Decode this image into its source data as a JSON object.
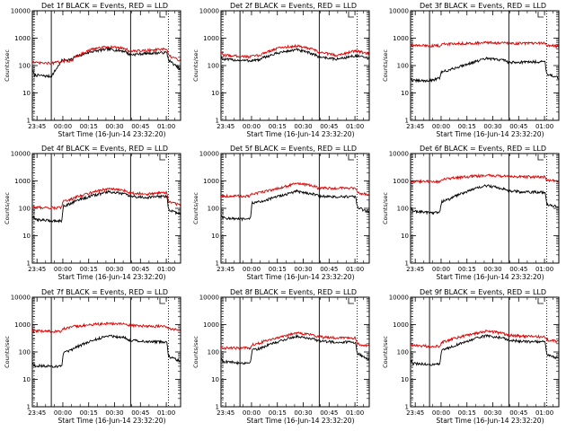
{
  "chart_data": [
    {
      "type": "line",
      "title": "Det 1f BLACK = Events, RED = LLD",
      "xlabel": "Start Time (16-Jun-14 23:32:20)",
      "ylabel": "Counts/sec",
      "ylim": [
        1,
        10000
      ],
      "yscale": "log",
      "ytick_labels": [
        "1",
        "10",
        "100",
        "1000",
        "10000"
      ],
      "xtick_labels": [
        "23:45",
        "00:00",
        "00:15",
        "00:30",
        "00:45",
        "01:00"
      ],
      "series": [
        {
          "color": "#000000",
          "x": [
            0,
            0.9,
            1,
            11,
            17,
            18,
            23.5,
            24,
            34,
            44,
            54,
            56,
            57,
            67,
            78,
            79,
            86
          ],
          "values": [
            60,
            55,
            45,
            40,
            150,
            160,
            170,
            200,
            320,
            400,
            330,
            260,
            250,
            280,
            300,
            160,
            70
          ]
        },
        {
          "color": "#e00000",
          "x": [
            0,
            0.9,
            1,
            11,
            17,
            18,
            23.5,
            24,
            34,
            44,
            54,
            56,
            57,
            67,
            78,
            79,
            86
          ],
          "values": [
            150,
            140,
            125,
            120,
            140,
            145,
            150,
            200,
            380,
            500,
            420,
            340,
            330,
            360,
            400,
            230,
            150
          ]
        }
      ],
      "markers": [
        {
          "style": "solid",
          "x": [
            11,
            57
          ]
        },
        {
          "style": "dotted",
          "x": [
            1,
            79
          ]
        }
      ]
    },
    {
      "type": "line",
      "title": "Det 2f BLACK = Events, RED = LLD",
      "xlabel": "Start Time (16-Jun-14 23:32:20)",
      "ylabel": "Counts/sec",
      "ylim": [
        1,
        10000
      ],
      "yscale": "log",
      "ytick_labels": [
        "1",
        "10",
        "100",
        "1000",
        "10000"
      ],
      "xtick_labels": [
        "23:45",
        "00:00",
        "00:15",
        "00:30",
        "00:45",
        "01:00"
      ],
      "series": [
        {
          "color": "#000000",
          "x": [
            0,
            0.9,
            1,
            11,
            17,
            18,
            23.5,
            24,
            34,
            44,
            54,
            56,
            57,
            67,
            78,
            79,
            86
          ],
          "values": [
            200,
            185,
            170,
            155,
            150,
            155,
            165,
            190,
            300,
            380,
            260,
            215,
            210,
            170,
            230,
            225,
            180
          ]
        },
        {
          "color": "#e00000",
          "x": [
            0,
            0.9,
            1,
            11,
            17,
            18,
            23.5,
            24,
            34,
            44,
            54,
            56,
            57,
            67,
            78,
            79,
            86
          ],
          "values": [
            280,
            260,
            240,
            220,
            210,
            220,
            240,
            280,
            450,
            520,
            380,
            320,
            310,
            240,
            340,
            330,
            270
          ]
        }
      ],
      "markers": [
        {
          "style": "solid",
          "x": [
            11,
            57
          ]
        },
        {
          "style": "dotted",
          "x": [
            1,
            79
          ]
        }
      ]
    },
    {
      "type": "line",
      "title": "Det 3f BLACK = Events, RED = LLD",
      "xlabel": "Start Time (16-Jun-14 23:32:20)",
      "ylabel": "Counts/sec",
      "ylim": [
        1,
        10000
      ],
      "yscale": "log",
      "ytick_labels": [
        "1",
        "10",
        "100",
        "1000",
        "10000"
      ],
      "xtick_labels": [
        "23:45",
        "00:00",
        "00:15",
        "00:30",
        "00:45",
        "01:00"
      ],
      "series": [
        {
          "color": "#000000",
          "x": [
            0,
            0.9,
            1,
            11,
            17,
            18,
            23.5,
            24,
            34,
            44,
            54,
            56,
            57,
            67,
            78,
            79,
            86
          ],
          "values": [
            35,
            30,
            28,
            28,
            35,
            60,
            70,
            75,
            120,
            180,
            160,
            140,
            130,
            135,
            140,
            50,
            35
          ]
        },
        {
          "color": "#e00000",
          "x": [
            0,
            0.9,
            1,
            11,
            17,
            18,
            23.5,
            24,
            34,
            44,
            54,
            56,
            57,
            67,
            78,
            79,
            86
          ],
          "values": [
            560,
            550,
            540,
            530,
            530,
            600,
            620,
            630,
            650,
            680,
            670,
            650,
            640,
            650,
            660,
            550,
            500
          ]
        }
      ],
      "markers": [
        {
          "style": "solid",
          "x": [
            11,
            57
          ]
        },
        {
          "style": "dotted",
          "x": [
            1,
            79
          ]
        }
      ]
    },
    {
      "type": "line",
      "title": "Det 4f BLACK = Events, RED = LLD",
      "xlabel": "Start Time (16-Jun-14 23:32:20)",
      "ylabel": "Counts/sec",
      "ylim": [
        1,
        10000
      ],
      "yscale": "log",
      "ytick_labels": [
        "1",
        "10",
        "100",
        "1000",
        "10000"
      ],
      "xtick_labels": [
        "23:45",
        "00:00",
        "00:15",
        "00:30",
        "00:45",
        "01:00"
      ],
      "series": [
        {
          "color": "#000000",
          "x": [
            0,
            0.9,
            1,
            11,
            17,
            18,
            23.5,
            24,
            34,
            44,
            54,
            56,
            57,
            67,
            78,
            79,
            86
          ],
          "values": [
            50,
            45,
            40,
            35,
            35,
            120,
            160,
            180,
            280,
            400,
            330,
            280,
            270,
            250,
            280,
            90,
            60
          ]
        },
        {
          "color": "#e00000",
          "x": [
            0,
            0.9,
            1,
            11,
            17,
            18,
            23.5,
            24,
            34,
            44,
            54,
            56,
            57,
            67,
            78,
            79,
            86
          ],
          "values": [
            120,
            115,
            110,
            105,
            105,
            190,
            220,
            240,
            380,
            520,
            440,
            380,
            370,
            330,
            380,
            180,
            130
          ]
        }
      ],
      "markers": [
        {
          "style": "solid",
          "x": [
            11,
            57
          ]
        },
        {
          "style": "dotted",
          "x": [
            1,
            79
          ]
        }
      ]
    },
    {
      "type": "line",
      "title": "Det 5f BLACK = Events, RED = LLD",
      "xlabel": "Start Time (16-Jun-14 23:32:20)",
      "ylabel": "Counts/sec",
      "ylim": [
        1,
        10000
      ],
      "yscale": "log",
      "ytick_labels": [
        "1",
        "10",
        "100",
        "1000",
        "10000"
      ],
      "xtick_labels": [
        "23:45",
        "00:00",
        "00:15",
        "00:30",
        "00:45",
        "01:00"
      ],
      "series": [
        {
          "color": "#000000",
          "x": [
            0,
            0.9,
            1,
            11,
            17,
            18,
            23.5,
            24,
            34,
            44,
            54,
            56,
            57,
            67,
            78,
            79,
            86
          ],
          "values": [
            60,
            50,
            45,
            40,
            40,
            160,
            175,
            185,
            280,
            420,
            330,
            290,
            280,
            260,
            270,
            110,
            70
          ]
        },
        {
          "color": "#e00000",
          "x": [
            0,
            0.9,
            1,
            11,
            17,
            18,
            23.5,
            24,
            34,
            44,
            54,
            56,
            57,
            67,
            78,
            79,
            86
          ],
          "values": [
            290,
            285,
            280,
            280,
            280,
            330,
            380,
            400,
            550,
            820,
            650,
            560,
            550,
            540,
            560,
            380,
            310
          ]
        }
      ],
      "markers": [
        {
          "style": "solid",
          "x": [
            11,
            57
          ]
        },
        {
          "style": "dotted",
          "x": [
            1,
            79
          ]
        }
      ]
    },
    {
      "type": "line",
      "title": "Det 6f BLACK = Events, RED = LLD",
      "xlabel": "Start Time (16-Jun-14 23:32:20)",
      "ylabel": "Counts/sec",
      "ylim": [
        1,
        10000
      ],
      "yscale": "log",
      "ytick_labels": [
        "1",
        "10",
        "100",
        "1000",
        "10000"
      ],
      "xtick_labels": [
        "23:45",
        "00:00",
        "00:15",
        "00:30",
        "00:45",
        "01:00"
      ],
      "series": [
        {
          "color": "#000000",
          "x": [
            0,
            0.9,
            1,
            11,
            17,
            18,
            23.5,
            24,
            34,
            44,
            54,
            56,
            57,
            67,
            78,
            79,
            86
          ],
          "values": [
            100,
            90,
            80,
            70,
            70,
            180,
            220,
            250,
            450,
            680,
            520,
            450,
            430,
            390,
            390,
            140,
            110
          ]
        },
        {
          "color": "#e00000",
          "x": [
            0,
            0.9,
            1,
            11,
            17,
            18,
            23.5,
            24,
            34,
            44,
            54,
            56,
            57,
            67,
            78,
            79,
            86
          ],
          "values": [
            950,
            950,
            950,
            950,
            950,
            1150,
            1200,
            1250,
            1450,
            1600,
            1500,
            1450,
            1430,
            1420,
            1420,
            1050,
            1000
          ]
        }
      ],
      "markers": [
        {
          "style": "solid",
          "x": [
            11,
            57
          ]
        },
        {
          "style": "dotted",
          "x": [
            1,
            79
          ]
        }
      ]
    },
    {
      "type": "line",
      "title": "Det 7f BLACK = Events, RED = LLD",
      "xlabel": "Start Time (16-Jun-14 23:32:20)",
      "ylabel": "Counts/sec",
      "ylim": [
        1,
        10000
      ],
      "yscale": "log",
      "ytick_labels": [
        "1",
        "10",
        "100",
        "1000",
        "10000"
      ],
      "xtick_labels": [
        "23:45",
        "00:00",
        "00:15",
        "00:30",
        "00:45",
        "01:00"
      ],
      "series": [
        {
          "color": "#000000",
          "x": [
            0,
            0.9,
            1,
            11,
            17,
            18,
            23.5,
            24,
            34,
            44,
            54,
            56,
            57,
            67,
            78,
            79,
            86
          ],
          "values": [
            40,
            35,
            32,
            30,
            30,
            90,
            120,
            140,
            250,
            400,
            330,
            280,
            270,
            240,
            230,
            70,
            45
          ]
        },
        {
          "color": "#e00000",
          "x": [
            0,
            0.9,
            1,
            11,
            17,
            18,
            23.5,
            24,
            34,
            44,
            54,
            56,
            57,
            67,
            78,
            79,
            86
          ],
          "values": [
            600,
            590,
            580,
            570,
            570,
            700,
            800,
            850,
            1000,
            1100,
            1050,
            950,
            940,
            880,
            860,
            700,
            650
          ]
        }
      ],
      "markers": [
        {
          "style": "solid",
          "x": [
            11,
            57
          ]
        },
        {
          "style": "dotted",
          "x": [
            1,
            79
          ]
        }
      ]
    },
    {
      "type": "line",
      "title": "Det 8f BLACK = Events, RED = LLD",
      "xlabel": "Start Time (16-Jun-14 23:32:20)",
      "ylabel": "Counts/sec",
      "ylim": [
        1,
        10000
      ],
      "yscale": "log",
      "ytick_labels": [
        "1",
        "10",
        "100",
        "1000",
        "10000"
      ],
      "xtick_labels": [
        "23:45",
        "00:00",
        "00:15",
        "00:30",
        "00:45",
        "01:00"
      ],
      "series": [
        {
          "color": "#000000",
          "x": [
            0,
            0.9,
            1,
            11,
            17,
            18,
            23.5,
            24,
            34,
            44,
            54,
            56,
            57,
            67,
            78,
            79,
            86
          ],
          "values": [
            60,
            50,
            45,
            40,
            40,
            120,
            140,
            150,
            250,
            380,
            300,
            260,
            250,
            230,
            230,
            90,
            55
          ]
        },
        {
          "color": "#e00000",
          "x": [
            0,
            0.9,
            1,
            11,
            17,
            18,
            23.5,
            24,
            34,
            44,
            54,
            56,
            57,
            67,
            78,
            79,
            86
          ],
          "values": [
            150,
            145,
            140,
            140,
            140,
            190,
            220,
            240,
            350,
            500,
            420,
            370,
            360,
            330,
            330,
            200,
            160
          ]
        }
      ],
      "markers": [
        {
          "style": "solid",
          "x": [
            11,
            57
          ]
        },
        {
          "style": "dotted",
          "x": [
            1,
            79
          ]
        }
      ]
    },
    {
      "type": "line",
      "title": "Det 9f BLACK = Events, RED = LLD",
      "xlabel": "Start Time (16-Jun-14 23:32:20)",
      "ylabel": "Counts/sec",
      "ylim": [
        1,
        10000
      ],
      "yscale": "log",
      "ytick_labels": [
        "1",
        "10",
        "100",
        "1000",
        "10000"
      ],
      "xtick_labels": [
        "23:45",
        "00:00",
        "00:15",
        "00:30",
        "00:45",
        "01:00"
      ],
      "series": [
        {
          "color": "#000000",
          "x": [
            0,
            0.9,
            1,
            11,
            17,
            18,
            23.5,
            24,
            34,
            44,
            54,
            56,
            57,
            67,
            78,
            79,
            86
          ],
          "values": [
            50,
            42,
            38,
            35,
            35,
            120,
            150,
            160,
            260,
            400,
            320,
            280,
            270,
            240,
            240,
            80,
            55
          ]
        },
        {
          "color": "#e00000",
          "x": [
            0,
            0.9,
            1,
            11,
            17,
            18,
            23.5,
            24,
            34,
            44,
            54,
            56,
            57,
            67,
            78,
            79,
            86
          ],
          "values": [
            180,
            175,
            170,
            165,
            165,
            230,
            280,
            300,
            420,
            580,
            480,
            420,
            410,
            370,
            360,
            280,
            240
          ]
        }
      ],
      "markers": [
        {
          "style": "solid",
          "x": [
            11,
            57
          ]
        },
        {
          "style": "dotted",
          "x": [
            1,
            79
          ]
        }
      ]
    }
  ]
}
